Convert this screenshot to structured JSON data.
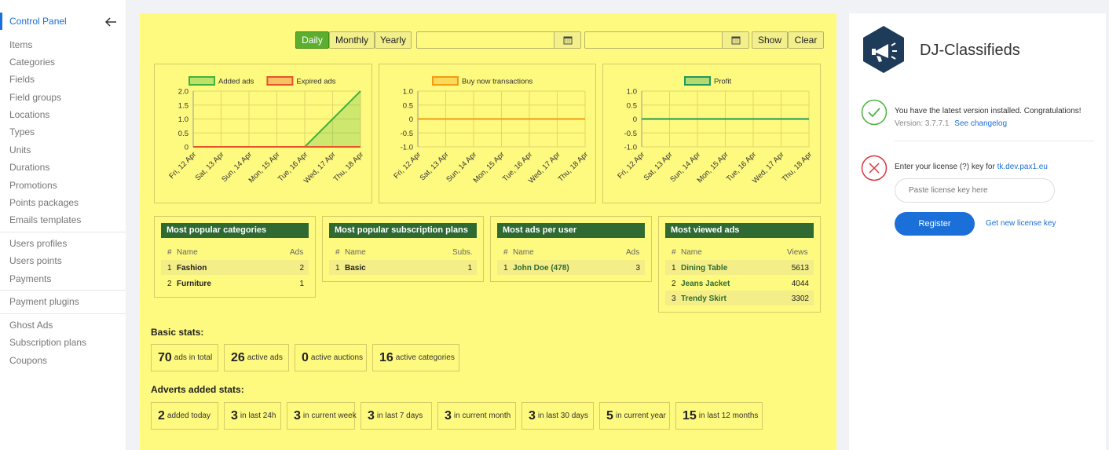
{
  "sidebar": {
    "header": "Control Panel",
    "groups": [
      [
        "Items",
        "Categories",
        "Fields",
        "Field groups",
        "Locations",
        "Types",
        "Units",
        "Durations",
        "Promotions",
        "Points packages",
        "Emails templates"
      ],
      [
        "Users profiles",
        "Users points",
        "Payments"
      ],
      [
        "Payment plugins"
      ],
      [
        "Ghost Ads",
        "Subscription plans",
        "Coupons"
      ]
    ]
  },
  "toolbar": {
    "daily": "Daily",
    "monthly": "Monthly",
    "yearly": "Yearly",
    "show": "Show",
    "clear": "Clear"
  },
  "charts": {
    "x_labels": [
      "Fri, 12 Apr",
      "Sat, 13 Apr",
      "Sun, 14 Apr",
      "Mon, 15 Apr",
      "Tue, 16 Apr",
      "Wed, 17 Apr",
      "Thu, 18 Apr"
    ],
    "ads": {
      "legend": [
        "Added ads",
        "Expired ads"
      ],
      "y_ticks": [
        "2.0",
        "1.5",
        "1.0",
        "0.5",
        "0"
      ],
      "ylim": [
        0,
        2
      ],
      "added": [
        0,
        0,
        0,
        0,
        0,
        1,
        2
      ],
      "expired": [
        0,
        0,
        0,
        0,
        0,
        0,
        0
      ]
    },
    "buynow": {
      "legend": [
        "Buy now transactions"
      ],
      "y_ticks": [
        "1.0",
        "0.5",
        "0",
        "-0.5",
        "-1.0"
      ],
      "ylim": [
        -1,
        1
      ],
      "values": [
        0,
        0,
        0,
        0,
        0,
        0,
        0
      ]
    },
    "profit": {
      "legend": [
        "Profit"
      ],
      "y_ticks": [
        "1.0",
        "0.5",
        "0",
        "-0.5",
        "-1.0"
      ],
      "ylim": [
        -1,
        1
      ],
      "values": [
        0,
        0,
        0,
        0,
        0,
        0,
        0
      ]
    }
  },
  "tables": {
    "categories": {
      "title": "Most popular categories",
      "cols": [
        "#",
        "Name",
        "Ads"
      ],
      "rows": [
        [
          "1",
          "Fashion",
          "2"
        ],
        [
          "2",
          "Furniture",
          "1"
        ]
      ]
    },
    "plans": {
      "title": "Most popular subscription plans",
      "cols": [
        "#",
        "Name",
        "Subs."
      ],
      "rows": [
        [
          "1",
          "Basic",
          "1"
        ]
      ]
    },
    "users": {
      "title": "Most ads per user",
      "cols": [
        "#",
        "Name",
        "Ads"
      ],
      "rows": [
        [
          "1",
          "John Doe (478)",
          "3"
        ]
      ]
    },
    "viewed": {
      "title": "Most viewed ads",
      "cols": [
        "#",
        "Name",
        "Views"
      ],
      "rows": [
        [
          "1",
          "Dining Table",
          "5613"
        ],
        [
          "2",
          "Jeans Jacket",
          "4044"
        ],
        [
          "3",
          "Trendy Skirt",
          "3302"
        ]
      ]
    }
  },
  "basic_stats": {
    "title": "Basic stats:",
    "items": [
      {
        "value": "70",
        "label": "ads in total"
      },
      {
        "value": "26",
        "label": "active ads"
      },
      {
        "value": "0",
        "label": "active auctions"
      },
      {
        "value": "16",
        "label": "active categories"
      }
    ]
  },
  "advert_stats": {
    "title": "Adverts added stats:",
    "items": [
      {
        "value": "2",
        "label": "added today"
      },
      {
        "value": "3",
        "label": "in last 24h"
      },
      {
        "value": "3",
        "label": "in current week"
      },
      {
        "value": "3",
        "label": "in last 7 days"
      },
      {
        "value": "3",
        "label": "in current month"
      },
      {
        "value": "3",
        "label": "in last 30 days"
      },
      {
        "value": "5",
        "label": "in current year"
      },
      {
        "value": "15",
        "label": "in last 12 months"
      }
    ]
  },
  "right": {
    "brand": "DJ-Classifieds",
    "version_msg": "You have the latest version installed. Congratulations!",
    "version_label": "Version: 3.7.7.1",
    "changelog": "See changelog",
    "license_msg": "Enter your license (?) key for",
    "license_domain": "tk.dev.pax1.eu",
    "license_placeholder": "Paste license key here",
    "register": "Register",
    "get_key": "Get new license key"
  },
  "colors": {
    "accent": "#1a6fd8",
    "green_dark": "#2f6a32",
    "panel": "#fef97f",
    "added": "#3fb33a",
    "expired": "#e8532b",
    "buynow": "#f39c12",
    "profit": "#1f9a58"
  }
}
